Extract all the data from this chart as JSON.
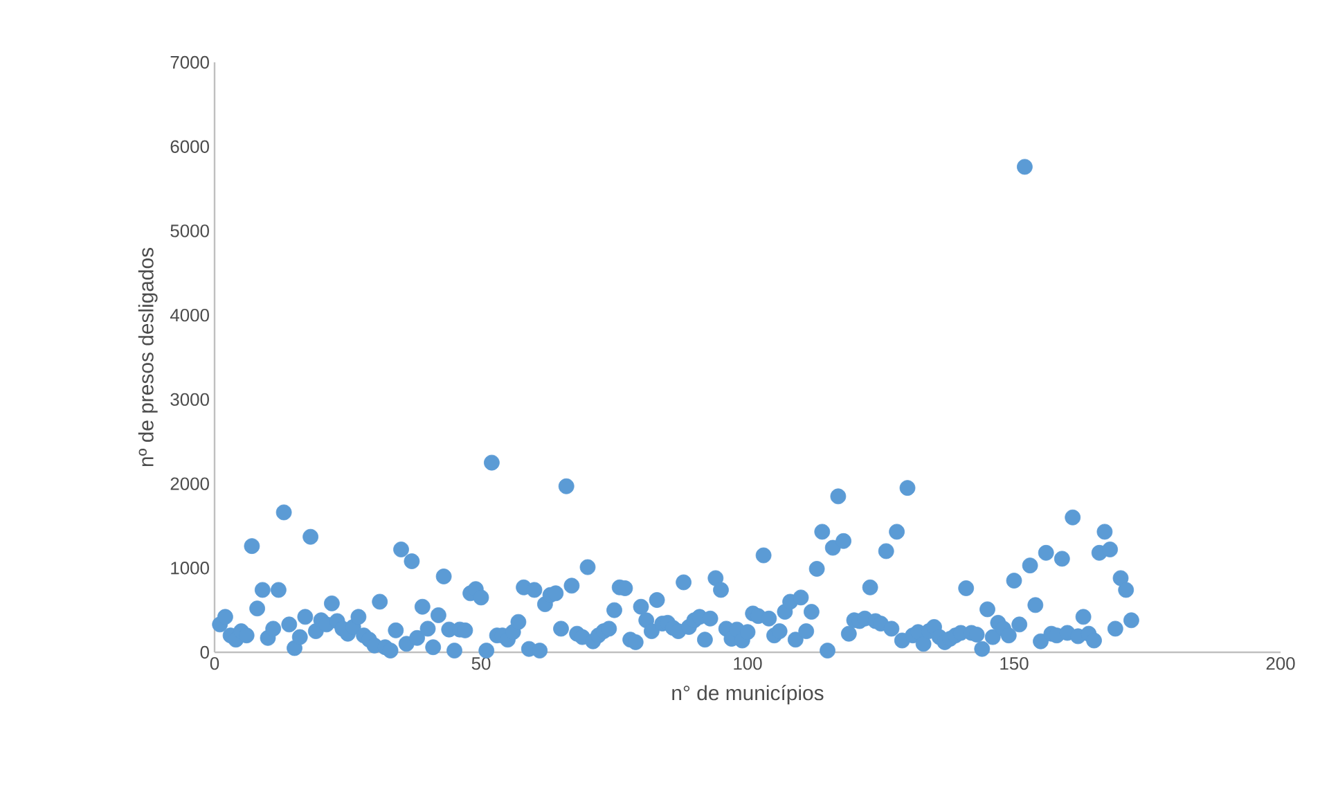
{
  "chart_data": {
    "type": "scatter",
    "xlabel": "n° de municípios",
    "ylabel": "nº de presos desligados",
    "color": "#5b9bd5",
    "marker": "circle",
    "grid": false,
    "xlim": [
      0,
      200
    ],
    "xticks": [
      0,
      50,
      100,
      150,
      200
    ],
    "ylim": [
      0,
      7000
    ],
    "yticks": [
      0,
      1000,
      2000,
      3000,
      4000,
      5000,
      6000,
      7000
    ],
    "x": [
      1,
      2,
      3,
      4,
      5,
      6,
      7,
      8,
      9,
      10,
      11,
      12,
      13,
      14,
      15,
      16,
      17,
      18,
      19,
      20,
      21,
      22,
      23,
      24,
      25,
      26,
      27,
      28,
      29,
      30,
      31,
      32,
      33,
      34,
      35,
      36,
      37,
      38,
      39,
      40,
      41,
      42,
      43,
      44,
      45,
      46,
      47,
      48,
      49,
      50,
      51,
      52,
      53,
      54,
      55,
      56,
      57,
      58,
      59,
      60,
      61,
      62,
      63,
      64,
      65,
      66,
      67,
      68,
      69,
      70,
      71,
      72,
      73,
      74,
      75,
      76,
      77,
      78,
      79,
      80,
      81,
      82,
      83,
      84,
      85,
      86,
      87,
      88,
      89,
      90,
      91,
      92,
      93,
      94,
      95,
      96,
      97,
      98,
      99,
      100,
      101,
      102,
      103,
      104,
      105,
      106,
      107,
      108,
      109,
      110,
      111,
      112,
      113,
      114,
      115,
      116,
      117,
      118,
      119,
      120,
      121,
      122,
      123,
      124,
      125,
      126,
      127,
      128,
      129,
      130,
      131,
      132,
      133,
      134,
      135,
      136,
      137,
      138,
      139,
      140,
      141,
      142,
      143,
      144,
      145,
      146,
      147,
      148,
      149,
      150,
      151,
      152,
      153,
      154,
      155,
      156,
      157,
      158,
      159,
      160,
      161,
      162,
      163,
      164,
      165,
      166,
      167,
      168,
      169,
      170,
      171,
      172
    ],
    "values": [
      330,
      420,
      200,
      150,
      250,
      200,
      1260,
      520,
      740,
      170,
      280,
      740,
      1660,
      330,
      50,
      180,
      420,
      1370,
      250,
      380,
      330,
      580,
      370,
      280,
      220,
      300,
      420,
      200,
      150,
      80,
      600,
      60,
      20,
      260,
      1220,
      100,
      1080,
      170,
      540,
      280,
      60,
      440,
      900,
      270,
      20,
      270,
      260,
      700,
      750,
      650,
      20,
      2250,
      200,
      200,
      150,
      240,
      360,
      770,
      40,
      740,
      20,
      570,
      680,
      700,
      280,
      1970,
      790,
      220,
      180,
      1010,
      130,
      200,
      250,
      280,
      500,
      770,
      760,
      150,
      120,
      540,
      380,
      250,
      620,
      340,
      350,
      290,
      250,
      830,
      300,
      380,
      420,
      150,
      400,
      880,
      740,
      280,
      160,
      270,
      140,
      240,
      460,
      430,
      1150,
      400,
      200,
      250,
      480,
      600,
      150,
      650,
      250,
      480,
      990,
      1430,
      20,
      1240,
      1850,
      1320,
      220,
      380,
      370,
      400,
      770,
      370,
      340,
      1200,
      280,
      1430,
      140,
      1950,
      200,
      240,
      100,
      250,
      300,
      180,
      120,
      160,
      200,
      230,
      760,
      230,
      210,
      40,
      510,
      180,
      350,
      280,
      200,
      850,
      330,
      5760,
      1030,
      560,
      130,
      1180,
      220,
      200,
      1110,
      230,
      1600,
      190,
      420,
      220,
      140,
      1180,
      1430,
      1220,
      280,
      880,
      740,
      380
    ]
  }
}
